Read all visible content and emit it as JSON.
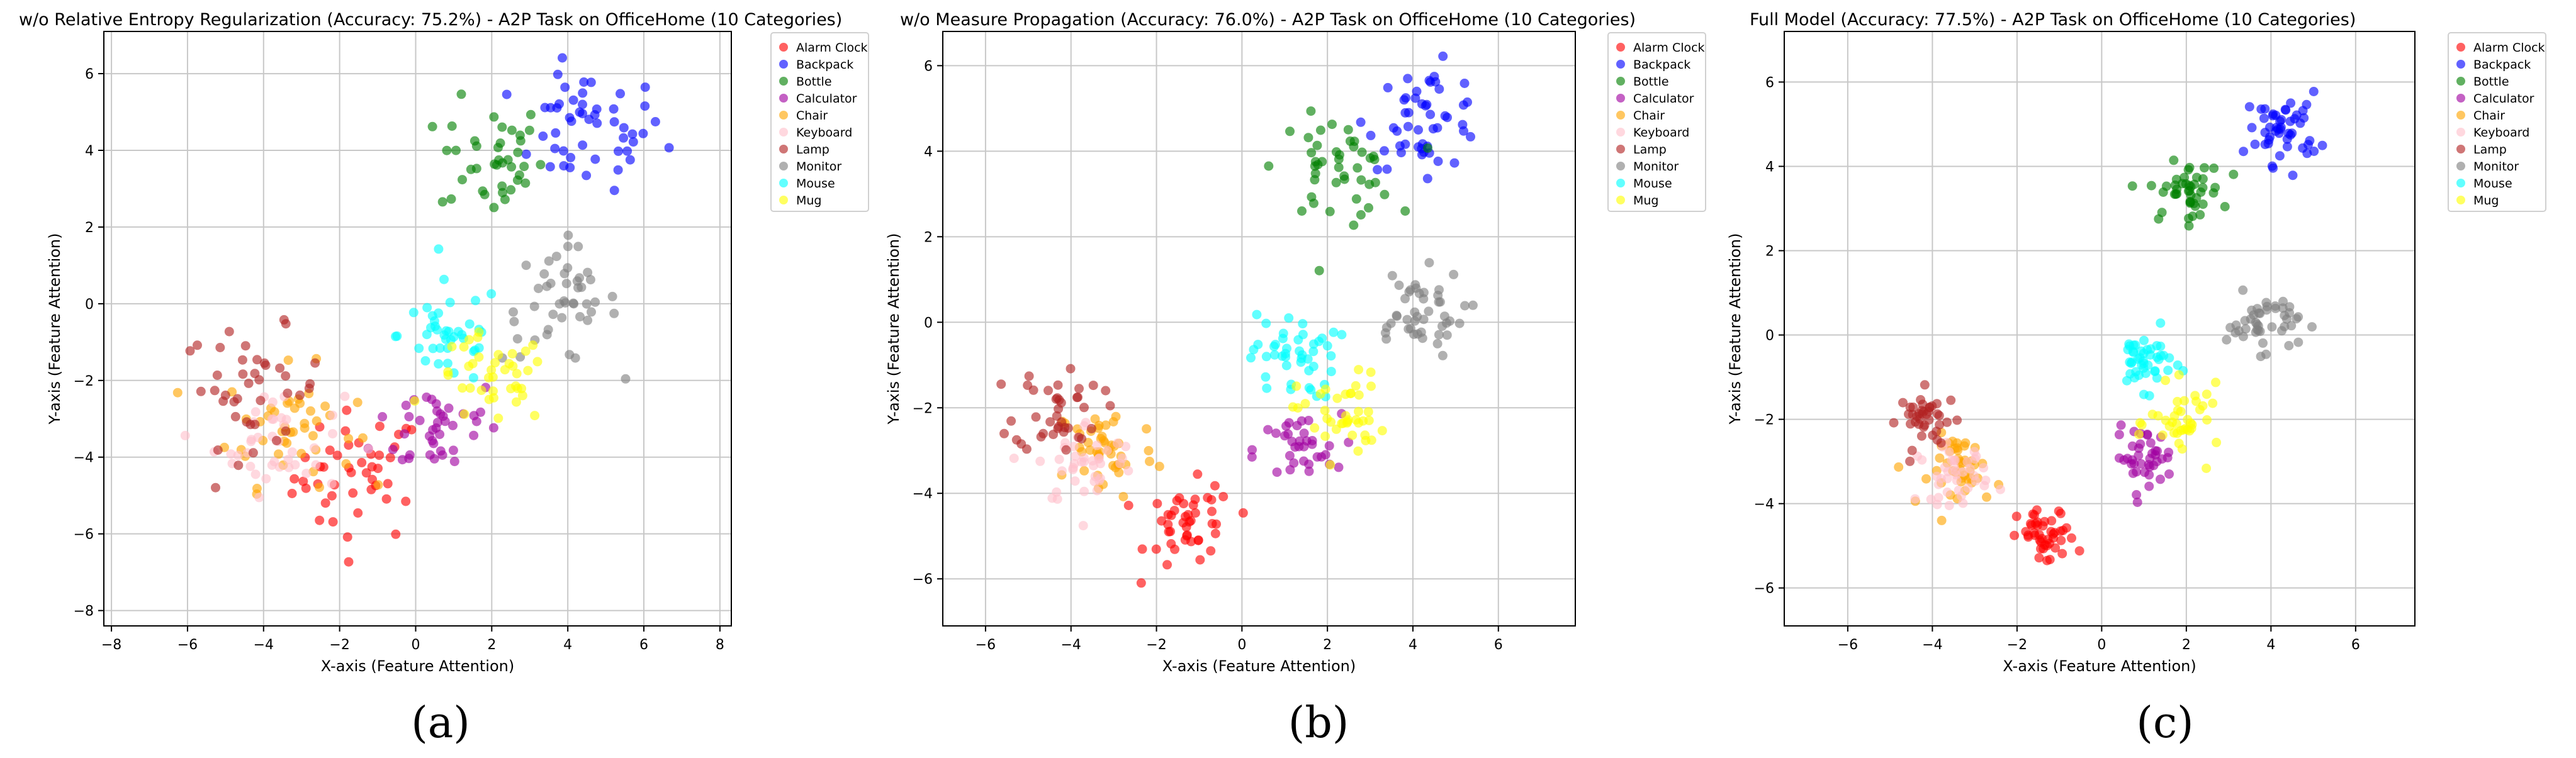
{
  "legend_entries": [
    {
      "name": "Alarm Clock",
      "color": "#ff0000"
    },
    {
      "name": "Backpack",
      "color": "#0000ff"
    },
    {
      "name": "Bottle",
      "color": "#008000"
    },
    {
      "name": "Calculator",
      "color": "#a000a0"
    },
    {
      "name": "Chair",
      "color": "#ffa500"
    },
    {
      "name": "Keyboard",
      "color": "#ffc0cb"
    },
    {
      "name": "Lamp",
      "color": "#b22222"
    },
    {
      "name": "Monitor",
      "color": "#808080"
    },
    {
      "name": "Mouse",
      "color": "#00ffff"
    },
    {
      "name": "Mug",
      "color": "#ffff00"
    }
  ],
  "chart_data": [
    {
      "type": "scatter",
      "panel_label": "(a)",
      "title": "w/o Relative Entropy Regularization (Accuracy: 75.2%) - A2P Task on OfficeHome (10 Categories)",
      "xlabel": "X-axis (Feature Attention)",
      "ylabel": "Y-axis (Feature Attention)",
      "xlim": [
        -8.2,
        8.3
      ],
      "ylim": [
        -8.4,
        7.1
      ],
      "xticks": [
        -8,
        -6,
        -4,
        -2,
        0,
        2,
        4,
        6,
        8
      ],
      "yticks": [
        -8,
        -6,
        -4,
        -2,
        0,
        2,
        4,
        6
      ],
      "grid": true,
      "legend": "outside-right-top",
      "clusters": [
        {
          "name": "Alarm Clock",
          "cx": -1.5,
          "cy": -4.5,
          "sx": 1.0,
          "sy": 1.0,
          "n": 45
        },
        {
          "name": "Backpack",
          "cx": 4.5,
          "cy": 4.5,
          "sx": 1.2,
          "sy": 0.9,
          "n": 50
        },
        {
          "name": "Bottle",
          "cx": 2.0,
          "cy": 3.8,
          "sx": 0.8,
          "sy": 0.9,
          "n": 40
        },
        {
          "name": "Calculator",
          "cx": 0.6,
          "cy": -3.2,
          "sx": 1.0,
          "sy": 0.8,
          "n": 40
        },
        {
          "name": "Chair",
          "cx": -3.3,
          "cy": -3.2,
          "sx": 1.0,
          "sy": 0.9,
          "n": 45
        },
        {
          "name": "Keyboard",
          "cx": -3.6,
          "cy": -3.6,
          "sx": 1.0,
          "sy": 0.8,
          "n": 40
        },
        {
          "name": "Lamp",
          "cx": -4.3,
          "cy": -2.2,
          "sx": 1.1,
          "sy": 0.9,
          "n": 40
        },
        {
          "name": "Monitor",
          "cx": 3.8,
          "cy": 0.0,
          "sx": 0.9,
          "sy": 0.9,
          "n": 45
        },
        {
          "name": "Mouse",
          "cx": 0.9,
          "cy": -0.8,
          "sx": 0.8,
          "sy": 0.8,
          "n": 40
        },
        {
          "name": "Mug",
          "cx": 2.0,
          "cy": -2.0,
          "sx": 0.9,
          "sy": 0.7,
          "n": 40
        }
      ]
    },
    {
      "type": "scatter",
      "panel_label": "(b)",
      "title": "w/o Measure Propagation (Accuracy: 76.0%) - A2P Task on OfficeHome (10 Categories)",
      "xlabel": "X-axis (Feature Attention)",
      "ylabel": "Y-axis (Feature Attention)",
      "xlim": [
        -7.0,
        7.8
      ],
      "ylim": [
        -7.1,
        6.8
      ],
      "xticks": [
        -6,
        -4,
        -2,
        0,
        2,
        4,
        6
      ],
      "yticks": [
        -6,
        -4,
        -2,
        0,
        2,
        4,
        6
      ],
      "grid": true,
      "legend": "outside-right-top",
      "clusters": [
        {
          "name": "Alarm Clock",
          "cx": -1.2,
          "cy": -4.8,
          "sx": 0.6,
          "sy": 0.6,
          "n": 45
        },
        {
          "name": "Backpack",
          "cx": 4.3,
          "cy": 4.8,
          "sx": 0.8,
          "sy": 0.7,
          "n": 50
        },
        {
          "name": "Bottle",
          "cx": 2.2,
          "cy": 3.6,
          "sx": 0.8,
          "sy": 0.7,
          "n": 45
        },
        {
          "name": "Calculator",
          "cx": 1.3,
          "cy": -3.0,
          "sx": 0.6,
          "sy": 0.5,
          "n": 35
        },
        {
          "name": "Chair",
          "cx": -3.2,
          "cy": -3.0,
          "sx": 0.7,
          "sy": 0.7,
          "n": 45
        },
        {
          "name": "Keyboard",
          "cx": -3.6,
          "cy": -3.3,
          "sx": 0.7,
          "sy": 0.6,
          "n": 40
        },
        {
          "name": "Lamp",
          "cx": -4.3,
          "cy": -2.0,
          "sx": 0.6,
          "sy": 0.6,
          "n": 40
        },
        {
          "name": "Monitor",
          "cx": 4.0,
          "cy": 0.2,
          "sx": 0.7,
          "sy": 0.6,
          "n": 45
        },
        {
          "name": "Mouse",
          "cx": 1.2,
          "cy": -0.8,
          "sx": 0.6,
          "sy": 0.6,
          "n": 45
        },
        {
          "name": "Mug",
          "cx": 2.3,
          "cy": -2.2,
          "sx": 0.6,
          "sy": 0.6,
          "n": 40
        }
      ]
    },
    {
      "type": "scatter",
      "panel_label": "(c)",
      "title": "Full Model (Accuracy: 77.5%) - A2P Task on OfficeHome (10 Categories)",
      "xlabel": "X-axis (Feature Attention)",
      "ylabel": "Y-axis (Feature Attention)",
      "xlim": [
        -7.5,
        7.4
      ],
      "ylim": [
        -6.9,
        7.2
      ],
      "xticks": [
        -6,
        -4,
        -2,
        0,
        2,
        4,
        6
      ],
      "yticks": [
        -6,
        -4,
        -2,
        0,
        2,
        4,
        6
      ],
      "grid": true,
      "legend": "outside-right-top",
      "clusters": [
        {
          "name": "Alarm Clock",
          "cx": -1.3,
          "cy": -4.8,
          "sx": 0.4,
          "sy": 0.4,
          "n": 45
        },
        {
          "name": "Backpack",
          "cx": 4.3,
          "cy": 4.9,
          "sx": 0.5,
          "sy": 0.5,
          "n": 50
        },
        {
          "name": "Bottle",
          "cx": 2.0,
          "cy": 3.4,
          "sx": 0.5,
          "sy": 0.4,
          "n": 45
        },
        {
          "name": "Calculator",
          "cx": 1.0,
          "cy": -2.9,
          "sx": 0.4,
          "sy": 0.4,
          "n": 40
        },
        {
          "name": "Chair",
          "cx": -3.2,
          "cy": -3.2,
          "sx": 0.5,
          "sy": 0.5,
          "n": 45
        },
        {
          "name": "Keyboard",
          "cx": -3.5,
          "cy": -3.3,
          "sx": 0.5,
          "sy": 0.4,
          "n": 40
        },
        {
          "name": "Lamp",
          "cx": -4.1,
          "cy": -2.0,
          "sx": 0.4,
          "sy": 0.4,
          "n": 40
        },
        {
          "name": "Monitor",
          "cx": 3.8,
          "cy": 0.3,
          "sx": 0.5,
          "sy": 0.4,
          "n": 45
        },
        {
          "name": "Mouse",
          "cx": 1.0,
          "cy": -0.6,
          "sx": 0.4,
          "sy": 0.4,
          "n": 45
        },
        {
          "name": "Mug",
          "cx": 2.0,
          "cy": -2.1,
          "sx": 0.5,
          "sy": 0.5,
          "n": 40
        }
      ]
    }
  ]
}
